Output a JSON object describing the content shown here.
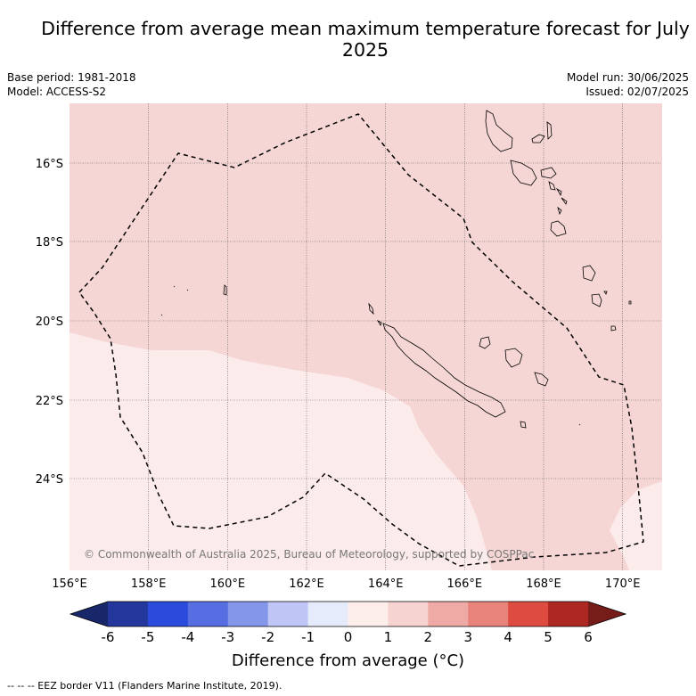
{
  "title": "Difference from average mean maximum temperature forecast for July 2025",
  "meta": {
    "base_period": "Base period: 1981-2018",
    "model": "Model: ACCESS-S2",
    "model_run": "Model run: 30/06/2025",
    "issued": "Issued: 02/07/2025"
  },
  "copyright": "© Commonwealth of Australia 2025, Bureau of Meteorology, supported by COSPPac",
  "map": {
    "lon_range": [
      156,
      171
    ],
    "lat_range": [
      -26.2,
      -14.8
    ],
    "lon_ticks": [
      "156°E",
      "158°E",
      "160°E",
      "162°E",
      "164°E",
      "166°E",
      "168°E",
      "170°E"
    ],
    "lat_ticks": [
      "16°S",
      "18°S",
      "20°S",
      "22°S",
      "24°S"
    ],
    "gridlines": true,
    "regions": [
      {
        "category": "0 to 1",
        "color": "#fcebeb"
      },
      {
        "category": "1 to 2",
        "color": "#f5d6d4"
      }
    ]
  },
  "colorbar": {
    "ticks": [
      "-6",
      "-5",
      "-4",
      "-3",
      "-2",
      "-1",
      "0",
      "1",
      "2",
      "3",
      "4",
      "5",
      "6"
    ],
    "colors": [
      "#24379d",
      "#2b4bdd",
      "#566ee2",
      "#8496e9",
      "#bfc6f5",
      "#e6ebfb",
      "#fdeeec",
      "#f6d3d1",
      "#efaaa6",
      "#e8837c",
      "#de4b41",
      "#ad2723"
    ],
    "under_color": "#182769",
    "over_color": "#761d1a",
    "label": "Difference from average (°C)"
  },
  "legend_footer": "-- -- -- EEZ border V11 (Flanders Marine Institute, 2019)."
}
